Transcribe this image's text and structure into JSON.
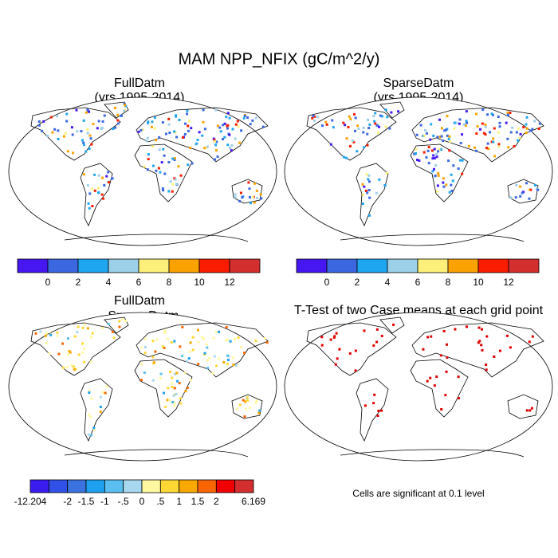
{
  "title": "MAM NPP_NFIX (gC/m^2/y)",
  "panels": [
    {
      "title": [
        "FullDatm",
        "(yrs 1995-2014)"
      ]
    },
    {
      "title": [
        "SparseDatm",
        "(yrs 1995-2014)"
      ]
    },
    {
      "title": [
        "FullDatm",
        "- SparseDatm"
      ]
    },
    {
      "title": [
        "T-Test of two Case means at each grid point"
      ]
    }
  ],
  "colorbars": [
    {
      "colors": [
        "#4617f0",
        "#3b68e0",
        "#1ea6f0",
        "#9ccfe8",
        "#fcf07a",
        "#f9a200",
        "#f91c00",
        "#d32f2f"
      ],
      "labels": [
        null,
        "0",
        "2",
        "4",
        "6",
        "8",
        "10",
        "12",
        null
      ]
    },
    {
      "colors": [
        "#4617f0",
        "#3b68e0",
        "#1ea6f0",
        "#9ccfe8",
        "#fcf07a",
        "#f9a200",
        "#f91c00",
        "#d32f2f"
      ],
      "labels": [
        null,
        "0",
        "2",
        "4",
        "6",
        "8",
        "10",
        "12",
        null
      ]
    },
    {
      "colors": [
        "#3a1cf0",
        "#3050e8",
        "#3a73e0",
        "#1ea0f0",
        "#5abff0",
        "#a8d8f0",
        "#fff8a0",
        "#fdd835",
        "#f9a800",
        "#f96500",
        "#f00000",
        "#d32f2f"
      ],
      "labels": [
        "-12.204",
        null,
        "-2",
        "-1.5",
        "-1",
        "-.5",
        "0",
        ".5",
        "1",
        "1.5",
        "2",
        null,
        "6.169"
      ]
    }
  ],
  "note": "Cells are significant at 0.1 level"
}
